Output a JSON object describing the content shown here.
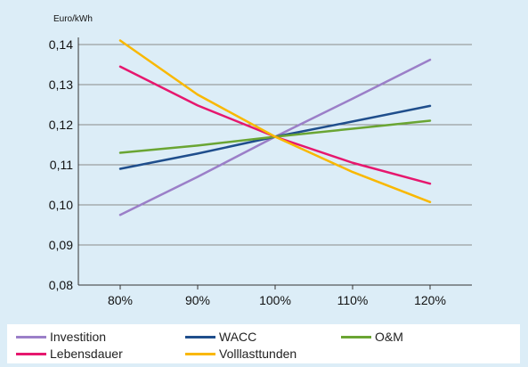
{
  "chart_data": {
    "type": "line",
    "title": "",
    "xlabel": "",
    "ylabel": "Euro/kWh",
    "categories": [
      "80%",
      "90%",
      "100%",
      "110%",
      "120%"
    ],
    "ylim": [
      0.08,
      0.145
    ],
    "yticks": [
      "0,08",
      "0,09",
      "0,10",
      "0,11",
      "0,12",
      "0,13",
      "0,14"
    ],
    "ytick_values": [
      0.08,
      0.09,
      0.1,
      0.11,
      0.12,
      0.13,
      0.14
    ],
    "grid": true,
    "legend_position": "bottom",
    "series": [
      {
        "name": "Investition",
        "color": "#9b7fc8",
        "values": [
          0.0975,
          0.107,
          0.117,
          0.1265,
          0.1362
        ]
      },
      {
        "name": "WACC",
        "color": "#1f4e8c",
        "values": [
          0.109,
          0.1128,
          0.117,
          0.1208,
          0.1247
        ]
      },
      {
        "name": "O&M",
        "color": "#6aa533",
        "values": [
          0.113,
          0.1148,
          0.117,
          0.119,
          0.121
        ]
      },
      {
        "name": "Lebensdauer",
        "color": "#e6176e",
        "values": [
          0.1345,
          0.1248,
          0.117,
          0.1105,
          0.1053
        ]
      },
      {
        "name": "Volllasttunden",
        "color": "#f9b800",
        "values": [
          0.141,
          0.1275,
          0.117,
          0.1082,
          0.1007
        ]
      }
    ]
  }
}
